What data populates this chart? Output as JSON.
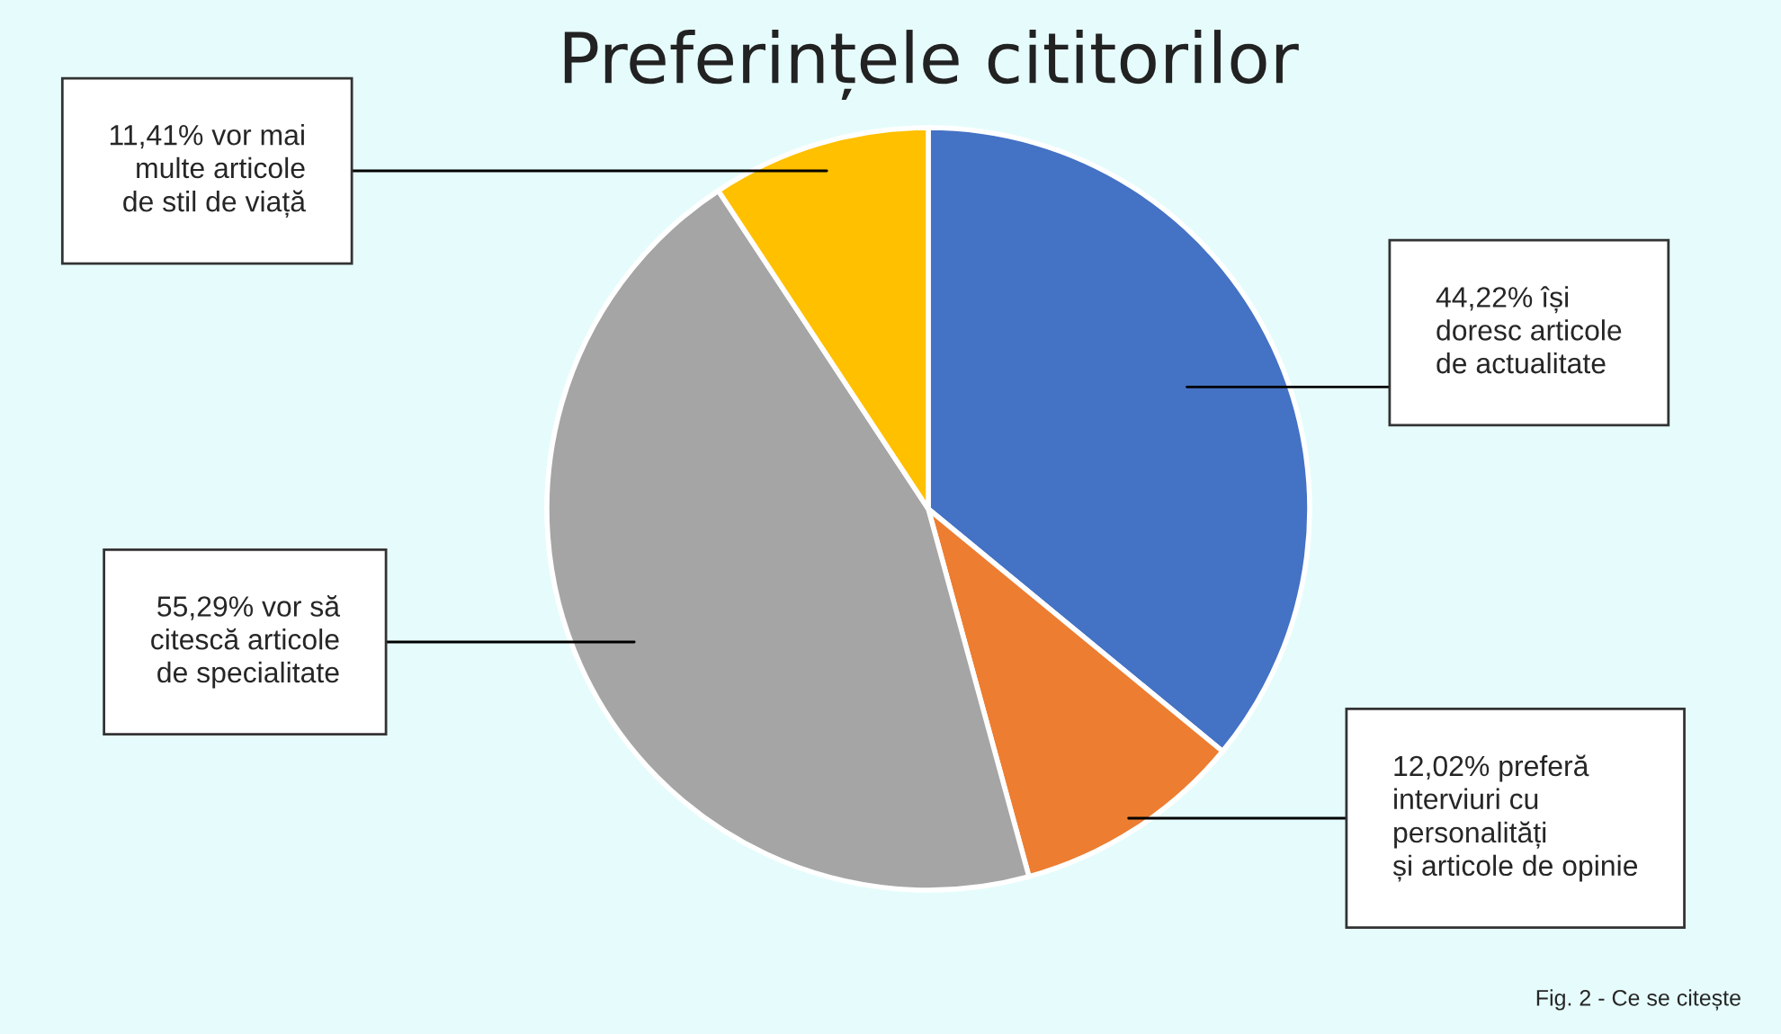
{
  "chart_data": {
    "type": "pie",
    "title": "Preferințele cititorilor",
    "categories": [
      "își\ndoresc articole\nde actualitate",
      "preferă\ninterviuri cu\npersonalități\nși articole de opinie",
      "vor să\ncitescă articole\nde specialitate",
      "vor mai\nmulte articole\nde stil de viață"
    ],
    "values": [
      44.22,
      12.02,
      55.29,
      11.41
    ],
    "value_labels": [
      "44,22%",
      "12,02%",
      "55,29%",
      "11,41%"
    ],
    "colors": [
      "#4472c4",
      "#ed7d31",
      "#a5a5a5",
      "#ffc000"
    ],
    "annotations": [
      "Fig. 2 - Ce se citește"
    ]
  }
}
